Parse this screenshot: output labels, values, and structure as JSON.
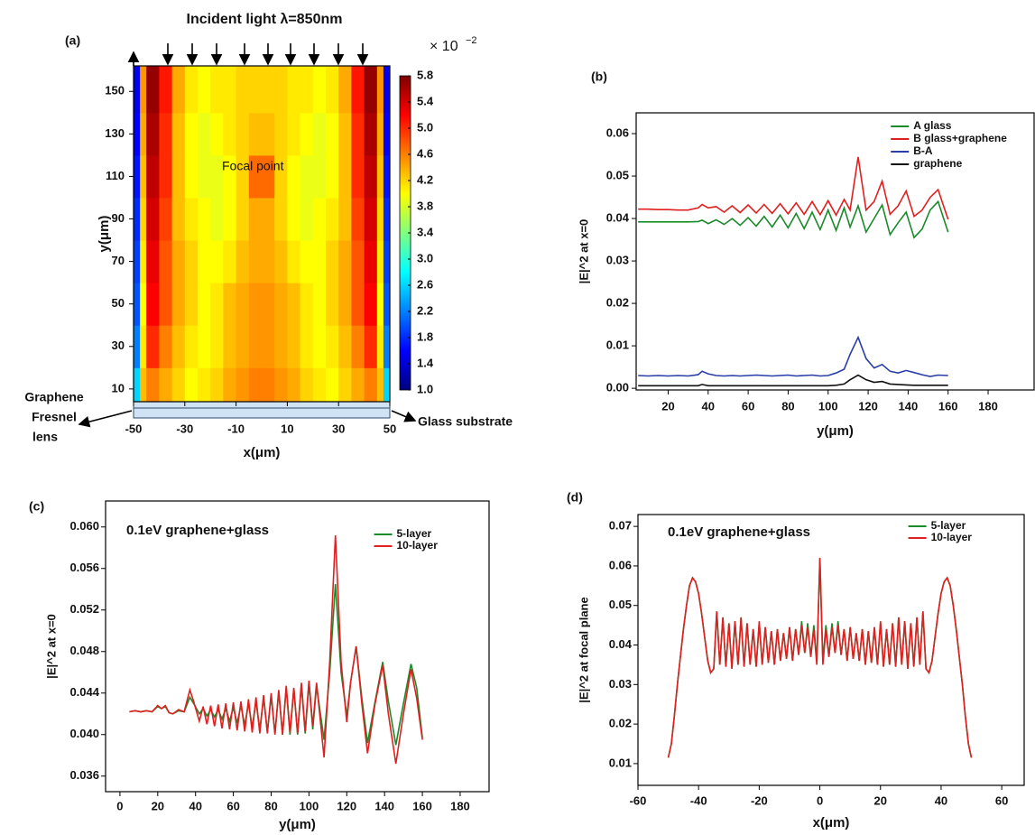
{
  "chart_data": [
    {
      "type": "heatmap",
      "panel_label": "(a)",
      "incident_label": "Incident light  λ=850nm",
      "focal_label": "Focal point",
      "lens_label": [
        "Graphene",
        "Fresnel",
        "lens"
      ],
      "substrate_label": "Glass substrate",
      "xlabel": "x(μm)",
      "ylabel": "y(μm)",
      "xlim": [
        -50,
        50
      ],
      "ylim": [
        4,
        162
      ],
      "xticks": [
        -50,
        -30,
        -10,
        10,
        30,
        50
      ],
      "yticks": [
        10,
        30,
        50,
        70,
        90,
        110,
        130,
        150
      ],
      "x_edges": [
        -50,
        -47.5,
        -45,
        -40,
        -35,
        -30,
        -25,
        -20,
        -15,
        -10,
        -5,
        0,
        5,
        10,
        15,
        20,
        25,
        30,
        35,
        40,
        45,
        47.5,
        50
      ],
      "y_edges": [
        4,
        20,
        40,
        60,
        80,
        100,
        120,
        140,
        162
      ],
      "z": [
        [
          2.6,
          4.3,
          4.6,
          4.4,
          4.2,
          4.0,
          4.1,
          4.2,
          4.4,
          4.5,
          4.6,
          4.6,
          4.5,
          4.4,
          4.2,
          4.1,
          4.0,
          4.2,
          4.4,
          4.6,
          4.3,
          2.6
        ],
        [
          2.2,
          4.1,
          5.0,
          4.6,
          4.3,
          4.1,
          4.0,
          4.1,
          4.3,
          4.4,
          4.5,
          4.5,
          4.4,
          4.3,
          4.1,
          4.0,
          4.1,
          4.3,
          4.6,
          5.0,
          4.1,
          2.2
        ],
        [
          2.0,
          4.0,
          5.2,
          4.8,
          4.4,
          4.2,
          4.0,
          4.1,
          4.3,
          4.4,
          4.5,
          4.5,
          4.4,
          4.3,
          4.1,
          4.0,
          4.2,
          4.4,
          4.8,
          5.2,
          4.0,
          2.0
        ],
        [
          1.9,
          4.1,
          5.3,
          4.8,
          4.4,
          4.2,
          4.0,
          4.0,
          4.1,
          4.3,
          4.4,
          4.4,
          4.3,
          4.1,
          4.0,
          4.0,
          4.2,
          4.4,
          4.8,
          5.3,
          4.1,
          1.9
        ],
        [
          1.8,
          4.2,
          5.4,
          4.9,
          4.3,
          4.1,
          4.0,
          3.9,
          4.0,
          4.2,
          4.4,
          4.4,
          4.2,
          4.0,
          3.9,
          4.0,
          4.1,
          4.3,
          4.9,
          5.4,
          4.2,
          1.8
        ],
        [
          1.7,
          4.3,
          5.5,
          5.0,
          4.3,
          4.0,
          3.9,
          3.9,
          4.0,
          4.2,
          4.7,
          4.7,
          4.2,
          4.0,
          3.9,
          3.9,
          4.0,
          4.3,
          5.0,
          5.5,
          4.3,
          1.7
        ],
        [
          1.6,
          4.4,
          5.6,
          5.0,
          4.3,
          4.0,
          3.9,
          4.0,
          4.1,
          4.2,
          4.3,
          4.3,
          4.2,
          4.1,
          4.0,
          3.9,
          4.0,
          4.3,
          5.0,
          5.6,
          4.4,
          1.6
        ],
        [
          1.5,
          4.5,
          5.7,
          5.1,
          4.4,
          4.1,
          4.0,
          4.1,
          4.1,
          4.2,
          4.2,
          4.2,
          4.2,
          4.1,
          4.1,
          4.0,
          4.1,
          4.4,
          5.1,
          5.7,
          4.5,
          1.5
        ]
      ],
      "zlim": [
        1,
        5.8
      ],
      "zticks": [
        {
          "value": 1,
          "label": "1.0"
        },
        1.4,
        1.8,
        2.2,
        2.6,
        {
          "value": 3,
          "label": "3.0"
        },
        3.4,
        3.8,
        4.2,
        4.6,
        {
          "value": 5,
          "label": "5.0"
        },
        5.4,
        5.8
      ],
      "colorbar_base": "× 10",
      "colorbar_exponent": "−2"
    },
    {
      "type": "line",
      "panel_label": "(b)",
      "xlabel": "y(μm)",
      "ylabel": "|E|^2 at x=0",
      "xlim": [
        4,
        203
      ],
      "ylim": [
        -0.0004,
        0.0649
      ],
      "xticks": [
        20,
        40,
        60,
        80,
        100,
        120,
        140,
        160,
        180
      ],
      "yticks": [
        {
          "value": 0,
          "label": "0.00"
        },
        0.01,
        0.02,
        0.03,
        0.04,
        0.05,
        0.06
      ],
      "legend": "upper right",
      "x": [
        5,
        10,
        15,
        20,
        25,
        30,
        35,
        37,
        40,
        44,
        48,
        52,
        56,
        60,
        64,
        68,
        72,
        76,
        80,
        84,
        88,
        92,
        96,
        100,
        104,
        108,
        111,
        115,
        119,
        123,
        127,
        131,
        135,
        139,
        143,
        147,
        151,
        155,
        160
      ],
      "series": [
        {
          "name": "A glass",
          "color": "#1a8a2a",
          "values": [
            0.0392,
            0.0392,
            0.0392,
            0.0392,
            0.0392,
            0.0392,
            0.0393,
            0.0396,
            0.0388,
            0.0397,
            0.0386,
            0.04,
            0.0384,
            0.0402,
            0.0382,
            0.0405,
            0.038,
            0.0408,
            0.0378,
            0.0412,
            0.0376,
            0.0415,
            0.0374,
            0.042,
            0.0372,
            0.0425,
            0.038,
            0.043,
            0.0368,
            0.04,
            0.0432,
            0.0362,
            0.039,
            0.0415,
            0.0355,
            0.0375,
            0.042,
            0.044,
            0.0368
          ]
        },
        {
          "name": "B glass+graphene",
          "color": "#e02020",
          "values": [
            0.0422,
            0.0422,
            0.0421,
            0.0421,
            0.042,
            0.042,
            0.0425,
            0.0433,
            0.0425,
            0.0428,
            0.0415,
            0.043,
            0.0414,
            0.0432,
            0.0413,
            0.0433,
            0.0412,
            0.0435,
            0.0411,
            0.0437,
            0.041,
            0.044,
            0.0409,
            0.0442,
            0.0408,
            0.0445,
            0.042,
            0.0545,
            0.042,
            0.044,
            0.0488,
            0.041,
            0.043,
            0.0465,
            0.0405,
            0.042,
            0.045,
            0.0468,
            0.0398
          ]
        },
        {
          "name": "B-A",
          "color": "#2a3ea8",
          "values": [
            0.003,
            0.0029,
            0.003,
            0.0029,
            0.003,
            0.0029,
            0.0032,
            0.004,
            0.0034,
            0.003,
            0.0029,
            0.003,
            0.0029,
            0.003,
            0.0031,
            0.003,
            0.0029,
            0.003,
            0.0031,
            0.0029,
            0.003,
            0.0031,
            0.0029,
            0.003,
            0.0036,
            0.0045,
            0.008,
            0.012,
            0.007,
            0.0048,
            0.0056,
            0.004,
            0.0036,
            0.0042,
            0.0037,
            0.0032,
            0.0028,
            0.0031,
            0.003
          ]
        },
        {
          "name": "graphene",
          "color": "#111111",
          "values": [
            0.0006,
            0.0006,
            0.0006,
            0.0006,
            0.0006,
            0.0006,
            0.0006,
            0.0009,
            0.0006,
            0.0006,
            0.0006,
            0.0006,
            0.0006,
            0.0006,
            0.0006,
            0.0006,
            0.0006,
            0.0006,
            0.0006,
            0.0006,
            0.0006,
            0.0006,
            0.0006,
            0.0006,
            0.0007,
            0.001,
            0.002,
            0.0031,
            0.002,
            0.0014,
            0.0016,
            0.001,
            0.0009,
            0.0008,
            0.0007,
            0.0007,
            0.0007,
            0.0007,
            0.0007
          ]
        }
      ]
    },
    {
      "type": "line",
      "panel_label": "(c)",
      "annotation": "0.1eV graphene+glass",
      "xlabel": "y(μm)",
      "ylabel": "|E|^2 at x=0",
      "xlim": [
        -7.6,
        195.3
      ],
      "ylim": [
        0.0345,
        0.0625
      ],
      "xticks": [
        0,
        20,
        40,
        60,
        80,
        100,
        120,
        140,
        160,
        180
      ],
      "yticks": [
        0.036,
        {
          "value": 0.04,
          "label": "0.040"
        },
        0.044,
        0.048,
        0.052,
        0.056,
        {
          "value": 0.06,
          "label": "0.060"
        }
      ],
      "legend": "upper right",
      "x": [
        5,
        8,
        11,
        14,
        17,
        20,
        22,
        24,
        26,
        28,
        31,
        34,
        37,
        39,
        42,
        44,
        46,
        48,
        50,
        52,
        54,
        56,
        58,
        60,
        62,
        64,
        66,
        68,
        70,
        72,
        74,
        76,
        78,
        80,
        82,
        84,
        86,
        88,
        90,
        92,
        94,
        96,
        98,
        100,
        102,
        104,
        108,
        111,
        114,
        117,
        120,
        122,
        125,
        128,
        131,
        135,
        139,
        142,
        146,
        150,
        154,
        157,
        160
      ],
      "series": [
        {
          "name": "5-layer",
          "color": "#1a8a2a",
          "values": [
            0.0422,
            0.0423,
            0.0422,
            0.0423,
            0.0422,
            0.0427,
            0.0425,
            0.0427,
            0.0421,
            0.042,
            0.0423,
            0.0422,
            0.0436,
            0.043,
            0.042,
            0.0425,
            0.0418,
            0.0424,
            0.0417,
            0.0424,
            0.0415,
            0.0425,
            0.0413,
            0.0426,
            0.0411,
            0.0428,
            0.0409,
            0.043,
            0.0407,
            0.0432,
            0.0405,
            0.0435,
            0.0403,
            0.0437,
            0.0401,
            0.0441,
            0.04,
            0.0445,
            0.04,
            0.0444,
            0.04,
            0.0448,
            0.0401,
            0.045,
            0.0405,
            0.0447,
            0.0395,
            0.046,
            0.0545,
            0.046,
            0.0418,
            0.045,
            0.0485,
            0.0435,
            0.0392,
            0.0432,
            0.047,
            0.0432,
            0.039,
            0.043,
            0.0468,
            0.0445,
            0.0397
          ]
        },
        {
          "name": "10-layer",
          "color": "#e02020",
          "values": [
            0.0422,
            0.0423,
            0.0422,
            0.0423,
            0.0422,
            0.0428,
            0.0425,
            0.0428,
            0.0421,
            0.042,
            0.0424,
            0.0422,
            0.0443,
            0.0432,
            0.0413,
            0.0427,
            0.041,
            0.0428,
            0.0408,
            0.0429,
            0.0406,
            0.043,
            0.0405,
            0.0431,
            0.0404,
            0.0432,
            0.0403,
            0.0434,
            0.0402,
            0.0436,
            0.0401,
            0.0438,
            0.0401,
            0.044,
            0.04,
            0.0443,
            0.04,
            0.0447,
            0.0402,
            0.0445,
            0.0401,
            0.045,
            0.0403,
            0.0452,
            0.0408,
            0.045,
            0.0378,
            0.047,
            0.0592,
            0.047,
            0.0412,
            0.045,
            0.0485,
            0.043,
            0.0382,
            0.043,
            0.0467,
            0.042,
            0.0372,
            0.042,
            0.0463,
            0.0435,
            0.0395
          ]
        }
      ]
    },
    {
      "type": "line",
      "panel_label": "(d)",
      "annotation": "0.1eV graphene+glass",
      "xlabel": "x(μm)",
      "ylabel": "|E|^2 at focal plane",
      "xlim": [
        -60,
        67.4
      ],
      "ylim": [
        0.0045,
        0.073
      ],
      "xticks": [
        -60,
        -40,
        -20,
        0,
        20,
        40,
        60
      ],
      "yticks": [
        0.01,
        0.02,
        0.03,
        0.04,
        0.05,
        0.06,
        0.07
      ],
      "legend": "upper right",
      "x": [
        -50,
        -49,
        -48,
        -47,
        -46,
        -45,
        -44,
        -43,
        -42,
        -41,
        -40,
        -39,
        -38,
        -37,
        -36,
        -35,
        -34,
        -33,
        -32,
        -31,
        -30,
        -29,
        -28,
        -27,
        -26,
        -25,
        -24,
        -23,
        -22,
        -21,
        -20,
        -19,
        -18,
        -17,
        -16,
        -15,
        -14,
        -13,
        -12,
        -11,
        -10,
        -9,
        -8,
        -7,
        -6,
        -5,
        -4,
        -3,
        -2,
        -1,
        0,
        1,
        2,
        3,
        4,
        5,
        6,
        7,
        8,
        9,
        10,
        11,
        12,
        13,
        14,
        15,
        16,
        17,
        18,
        19,
        20,
        21,
        22,
        23,
        24,
        25,
        26,
        27,
        28,
        29,
        30,
        31,
        32,
        33,
        34,
        35,
        36,
        37,
        38,
        39,
        40,
        41,
        42,
        43,
        44,
        45,
        46,
        47,
        48,
        49,
        50
      ],
      "series": [
        {
          "name": "5-layer",
          "color": "#1a8a2a",
          "values": [
            0.0115,
            0.015,
            0.022,
            0.03,
            0.037,
            0.044,
            0.05,
            0.055,
            0.057,
            0.056,
            0.053,
            0.048,
            0.042,
            0.036,
            0.033,
            0.034,
            0.0485,
            0.035,
            0.047,
            0.0345,
            0.0455,
            0.034,
            0.046,
            0.035,
            0.047,
            0.0345,
            0.0455,
            0.035,
            0.044,
            0.0345,
            0.0455,
            0.035,
            0.0445,
            0.0355,
            0.0435,
            0.035,
            0.044,
            0.036,
            0.043,
            0.0365,
            0.0445,
            0.036,
            0.044,
            0.0375,
            0.046,
            0.038,
            0.0455,
            0.037,
            0.045,
            0.036,
            0.062,
            0.036,
            0.045,
            0.037,
            0.0455,
            0.038,
            0.046,
            0.0375,
            0.044,
            0.036,
            0.0445,
            0.0365,
            0.043,
            0.036,
            0.044,
            0.035,
            0.0435,
            0.0355,
            0.0445,
            0.035,
            0.0455,
            0.0345,
            0.044,
            0.035,
            0.0455,
            0.0345,
            0.047,
            0.035,
            0.046,
            0.034,
            0.0455,
            0.0345,
            0.047,
            0.035,
            0.0485,
            0.034,
            0.033,
            0.036,
            0.042,
            0.048,
            0.053,
            0.056,
            0.057,
            0.055,
            0.05,
            0.044,
            0.037,
            0.03,
            0.022,
            0.015,
            0.0115
          ]
        },
        {
          "name": "10-layer",
          "color": "#e02020",
          "values": [
            0.0115,
            0.015,
            0.022,
            0.03,
            0.037,
            0.044,
            0.05,
            0.055,
            0.057,
            0.056,
            0.053,
            0.048,
            0.042,
            0.036,
            0.033,
            0.034,
            0.0485,
            0.035,
            0.047,
            0.0345,
            0.0455,
            0.034,
            0.046,
            0.035,
            0.047,
            0.0345,
            0.0455,
            0.035,
            0.044,
            0.0345,
            0.046,
            0.035,
            0.0445,
            0.0355,
            0.0435,
            0.035,
            0.044,
            0.036,
            0.043,
            0.0365,
            0.0445,
            0.036,
            0.044,
            0.0375,
            0.045,
            0.038,
            0.0445,
            0.037,
            0.044,
            0.035,
            0.062,
            0.035,
            0.044,
            0.037,
            0.0445,
            0.038,
            0.045,
            0.0375,
            0.044,
            0.036,
            0.0445,
            0.0365,
            0.043,
            0.036,
            0.044,
            0.035,
            0.0435,
            0.0355,
            0.0445,
            0.035,
            0.046,
            0.0345,
            0.044,
            0.035,
            0.0455,
            0.0345,
            0.047,
            0.035,
            0.046,
            0.034,
            0.0455,
            0.0345,
            0.047,
            0.035,
            0.0485,
            0.034,
            0.033,
            0.036,
            0.042,
            0.048,
            0.053,
            0.056,
            0.057,
            0.055,
            0.05,
            0.044,
            0.037,
            0.03,
            0.022,
            0.015,
            0.0115
          ]
        }
      ]
    }
  ]
}
